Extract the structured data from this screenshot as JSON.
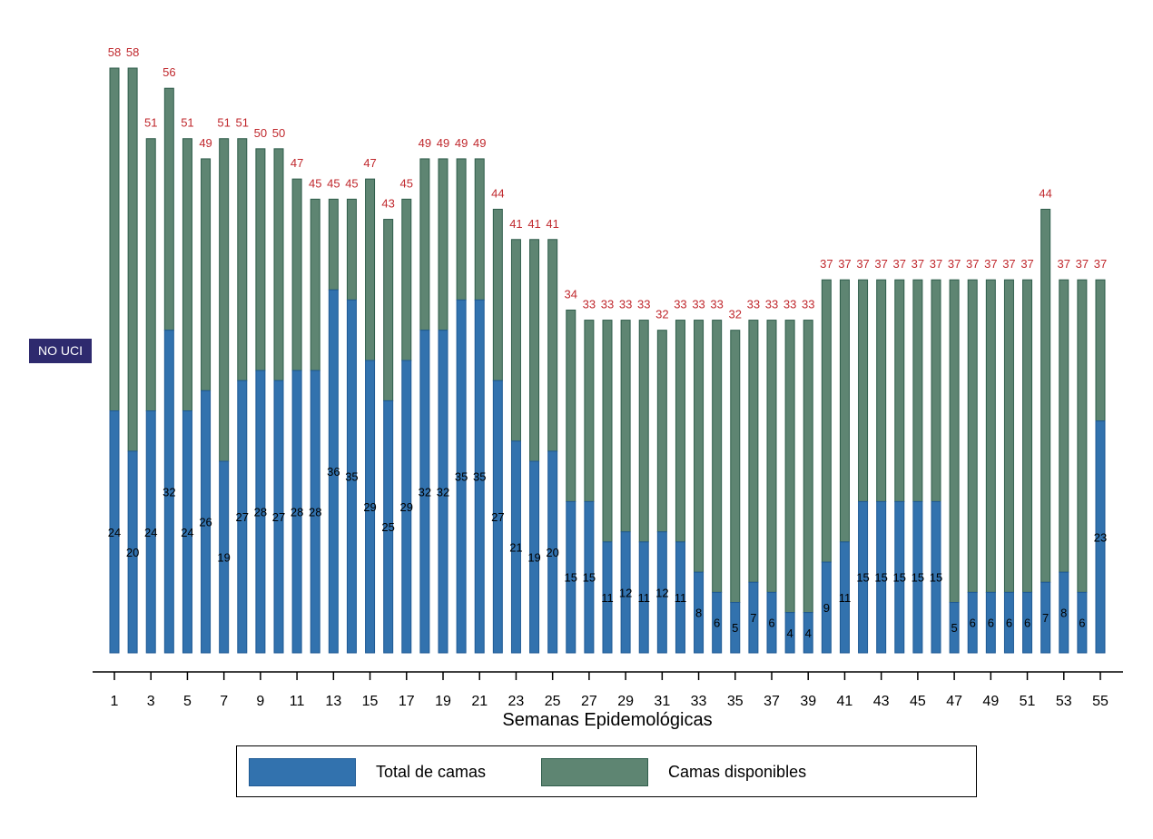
{
  "side_label": "NO UCI",
  "colors": {
    "total": "#3272ae",
    "total_edge": "#1f5a94",
    "disponibles": "#5e8572",
    "disponibles_edge": "#2f5d4b",
    "top_label": "#c0282d",
    "value_label": "#000000"
  },
  "chart_data": {
    "type": "bar",
    "stacked": true,
    "xlabel": "Semanas Epidemológicas",
    "ylabel": "",
    "categories": [
      1,
      2,
      3,
      4,
      5,
      6,
      7,
      8,
      9,
      10,
      11,
      12,
      13,
      14,
      15,
      16,
      17,
      18,
      19,
      20,
      21,
      22,
      23,
      24,
      25,
      26,
      27,
      28,
      29,
      30,
      31,
      32,
      33,
      34,
      35,
      36,
      37,
      38,
      39,
      40,
      41,
      42,
      43,
      44,
      45,
      46,
      47,
      48,
      49,
      50,
      51,
      52,
      53,
      54,
      55
    ],
    "tick_labels": [
      1,
      3,
      5,
      7,
      9,
      11,
      13,
      15,
      17,
      19,
      21,
      23,
      25,
      27,
      29,
      31,
      33,
      35,
      37,
      39,
      41,
      43,
      45,
      47,
      49,
      51,
      53,
      55
    ],
    "ylim": [
      0,
      58
    ],
    "grid": false,
    "legend_position": "bottom",
    "series": [
      {
        "name": "Total de camas",
        "color": "#3272ae",
        "values": [
          24,
          20,
          24,
          32,
          24,
          26,
          19,
          27,
          28,
          27,
          28,
          28,
          36,
          35,
          29,
          25,
          29,
          32,
          32,
          35,
          35,
          27,
          21,
          19,
          20,
          15,
          15,
          11,
          12,
          11,
          12,
          11,
          8,
          6,
          5,
          7,
          6,
          4,
          4,
          9,
          11,
          15,
          15,
          15,
          15,
          15,
          5,
          6,
          6,
          6,
          6,
          7,
          8,
          6,
          23
        ]
      },
      {
        "name": "Camas disponibles",
        "color": "#5e8572",
        "total_labels": [
          58,
          58,
          51,
          56,
          51,
          49,
          51,
          51,
          50,
          50,
          47,
          45,
          45,
          45,
          47,
          43,
          45,
          49,
          49,
          49,
          49,
          44,
          41,
          41,
          41,
          34,
          33,
          33,
          33,
          33,
          32,
          33,
          33,
          33,
          32,
          33,
          33,
          33,
          33,
          37,
          37,
          37,
          37,
          37,
          37,
          37,
          37,
          37,
          37,
          37,
          37,
          44,
          37,
          37,
          37
        ]
      }
    ]
  }
}
